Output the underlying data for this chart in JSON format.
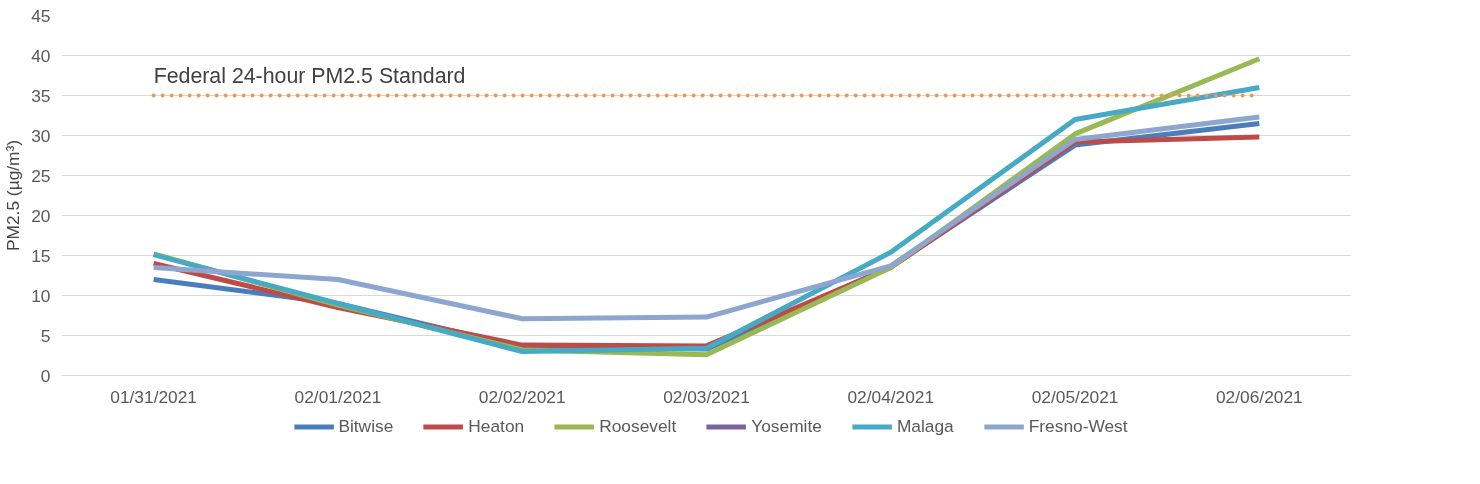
{
  "chart_data": {
    "type": "line",
    "ylabel": "PM2.5 (µg/m³)",
    "categories": [
      "01/31/2021",
      "02/01/2021",
      "02/02/2021",
      "02/03/2021",
      "02/04/2021",
      "02/05/2021",
      "02/06/2021"
    ],
    "series": [
      {
        "name": "Bitwise",
        "color": "#4a7ebb",
        "values": [
          12,
          9,
          3.5,
          3.3,
          13.6,
          28.8,
          31.5
        ]
      },
      {
        "name": "Heaton",
        "color": "#be4b48",
        "values": [
          14,
          8.5,
          3.8,
          3.7,
          13.5,
          29.2,
          29.8
        ]
      },
      {
        "name": "Roosevelt",
        "color": "#98b954",
        "values": [
          15.2,
          8.8,
          3.2,
          2.6,
          13.5,
          30.2,
          39.6
        ]
      },
      {
        "name": "Yosemite",
        "color": "#7d60a0",
        "values": [
          null,
          null,
          null,
          null,
          null,
          null,
          null
        ]
      },
      {
        "name": "Malaga",
        "color": "#46aac5",
        "values": [
          15.1,
          9,
          3,
          3.4,
          15.4,
          32,
          36
        ]
      },
      {
        "name": "Fresno-West",
        "color": "#8da6d0",
        "values": [
          13.5,
          12,
          7.1,
          7.3,
          13.7,
          29.5,
          32.3
        ]
      }
    ],
    "ylim": [
      0,
      45
    ],
    "yticks": [
      0,
      5,
      10,
      15,
      20,
      25,
      30,
      35,
      40,
      45
    ],
    "ref_lines": [
      {
        "axis": "y",
        "value": 35,
        "label": "Federal 24-hour PM2.5 Standard",
        "color": "#f79646",
        "line_style": "dotted"
      }
    ],
    "grid": "y",
    "legend": "bottom",
    "line_style": "solid",
    "marker": "none"
  }
}
